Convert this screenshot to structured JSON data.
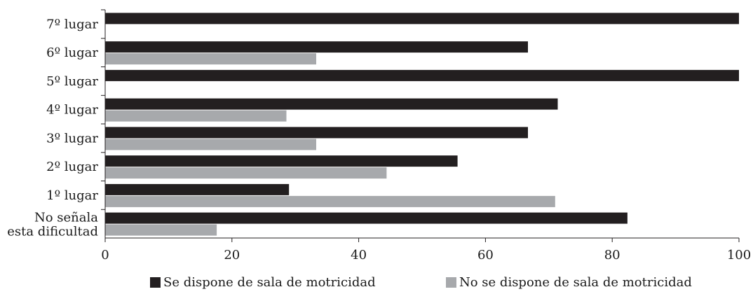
{
  "chart_data": {
    "type": "bar",
    "orientation": "horizontal",
    "categories": [
      "7º lugar",
      "6º lugar",
      "5º lugar",
      "4º lugar",
      "3º lugar",
      "2º lugar",
      "1º lugar",
      "No señala esta dificultad"
    ],
    "series": [
      {
        "name": "Se dispone de sala de motricidad",
        "color": "#231f20",
        "values": [
          100,
          66.7,
          100,
          71.4,
          66.7,
          55.6,
          29.0,
          82.4
        ]
      },
      {
        "name": "No se dispone de sala de motricidad",
        "color": "#a7a9ac",
        "values": [
          0,
          33.3,
          0,
          28.6,
          33.3,
          44.4,
          71.0,
          17.6
        ]
      }
    ],
    "xlim": [
      0,
      100
    ],
    "xticks": [
      "0",
      "20",
      "40",
      "60",
      "80",
      "100"
    ],
    "legend_position": "bottom",
    "grid": false
  }
}
